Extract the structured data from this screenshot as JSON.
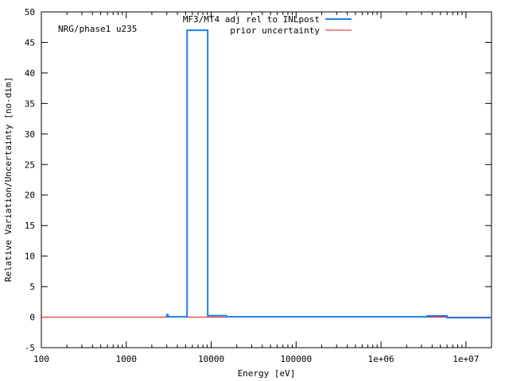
{
  "chart_data": {
    "type": "line",
    "title": "",
    "annotation": "NRG/phase1 u235",
    "xlabel": "Energy [eV]",
    "ylabel": "Relative Variation/Uncertainty [no-dim]",
    "xscale": "log",
    "xlim": [
      100,
      20000000
    ],
    "ylim": [
      -5,
      50
    ],
    "x_ticks": [
      100,
      1000,
      10000,
      100000,
      1000000,
      10000000
    ],
    "x_tick_labels": [
      "100",
      "1000",
      "10000",
      "100000",
      "1e+06",
      "1e+07"
    ],
    "y_ticks": [
      -5,
      0,
      5,
      10,
      15,
      20,
      25,
      30,
      35,
      40,
      45,
      50
    ],
    "y_tick_labels": [
      "-5",
      "0",
      "5",
      "10",
      "15",
      "20",
      "25",
      "30",
      "35",
      "40",
      "45",
      "50"
    ],
    "grid": false,
    "legend_position": "top-right",
    "series": [
      {
        "name": "MF3/MT4 adj rel to INLpost",
        "color": "#1f7fe6",
        "style": "step",
        "x": [
          3000,
          3000,
          3100,
          3100,
          5200,
          5200,
          9100,
          9100,
          15000,
          15000,
          3500000,
          3500000,
          6000000,
          6000000,
          20000000
        ],
        "y": [
          0,
          0.4,
          0.4,
          0.05,
          0.05,
          47,
          47,
          0.25,
          0.25,
          0.05,
          0.05,
          0.2,
          0.2,
          -0.1,
          -0.1
        ]
      },
      {
        "name": "prior uncertainty",
        "color": "#e31a1c",
        "style": "line",
        "x": [
          100,
          20000000
        ],
        "y": [
          0,
          0
        ]
      }
    ]
  }
}
